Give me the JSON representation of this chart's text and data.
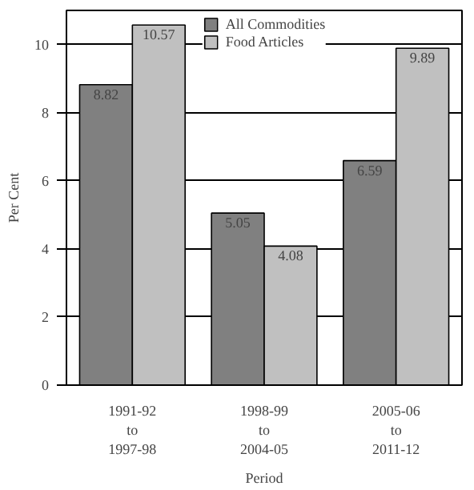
{
  "chart_data": {
    "type": "bar",
    "categories": [
      "1991-92\nto\n1997-98",
      "1998-99\nto\n2004-05",
      "2005-06\nto\n2011-12"
    ],
    "series": [
      {
        "name": "All Commodities",
        "color": "#808080",
        "values": [
          8.82,
          5.05,
          6.59
        ]
      },
      {
        "name": "Food Articles",
        "color": "#c0c0c0",
        "values": [
          10.57,
          4.08,
          9.89
        ]
      }
    ],
    "xlabel": "Period",
    "ylabel": "Per Cent",
    "ylim": [
      0,
      11
    ],
    "yticks": [
      0,
      2,
      4,
      6,
      8,
      10
    ],
    "grid": "y",
    "legend": "top",
    "data_labels": true
  }
}
